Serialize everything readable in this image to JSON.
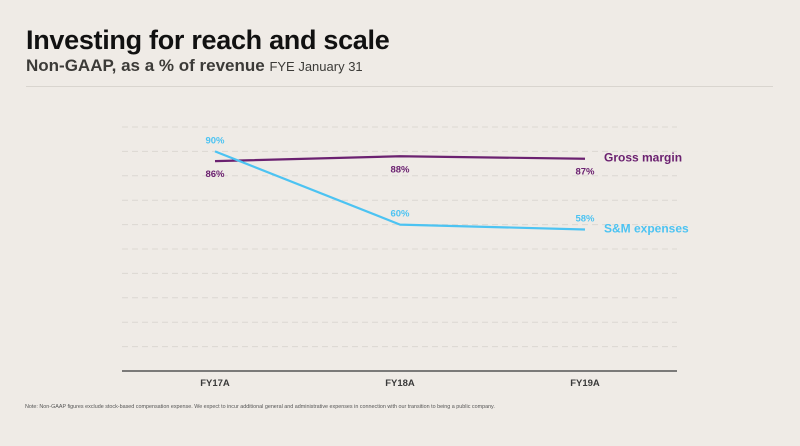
{
  "header": {
    "title": "Investing for reach and scale",
    "subtitle_main": "Non-GAAP, as a % of revenue",
    "subtitle_fye": "FYE January 31"
  },
  "footer": {
    "note": "Note: Non-GAAP figures exclude stock-based compensation expense. We expect to incur additional general and administrative expenses in connection with our transition to being a public company."
  },
  "chart_data": {
    "type": "line",
    "title": "Investing for reach and scale",
    "subtitle": "Non-GAAP, as a % of revenue FYE January 31",
    "xlabel": "",
    "ylabel": "",
    "categories": [
      "FY17A",
      "FY18A",
      "FY19A"
    ],
    "ylim": [
      0,
      100
    ],
    "grid": true,
    "legend": "right (inline labels)",
    "series": [
      {
        "name": "Gross margin",
        "values": [
          86,
          88,
          87
        ],
        "labels": [
          "86%",
          "88%",
          "87%"
        ],
        "color": "#6b2170"
      },
      {
        "name": "S&M expenses",
        "values": [
          90,
          60,
          58
        ],
        "labels": [
          "90%",
          "60%",
          "58%"
        ],
        "color": "#4cc3f2"
      }
    ]
  }
}
